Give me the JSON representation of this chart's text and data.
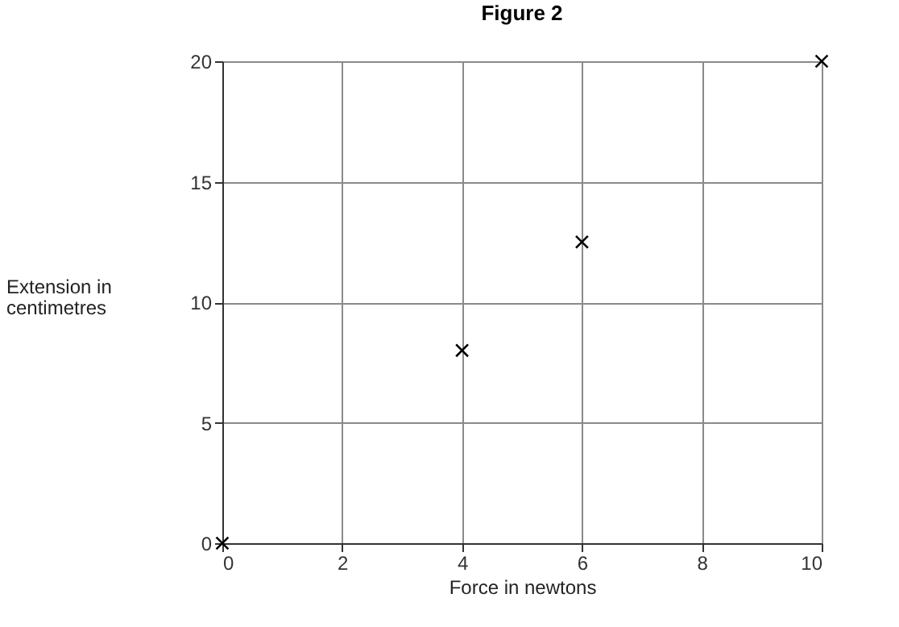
{
  "chart_data": {
    "type": "scatter",
    "title": "Figure 2",
    "xlabel": "Force in newtons",
    "ylabel": "Extension in centimetres",
    "x": [
      0,
      4,
      6,
      10
    ],
    "series": [
      {
        "color": "#000000",
        "values": [
          0,
          8,
          12.5,
          20
        ]
      }
    ],
    "xlim": [
      0,
      10
    ],
    "xticks": [
      0,
      2,
      4,
      6,
      8,
      10
    ],
    "ylim": [
      0,
      20
    ],
    "yticks": [
      0,
      5,
      10,
      15,
      20
    ],
    "grid": true,
    "marker": "cross",
    "legend": false
  }
}
